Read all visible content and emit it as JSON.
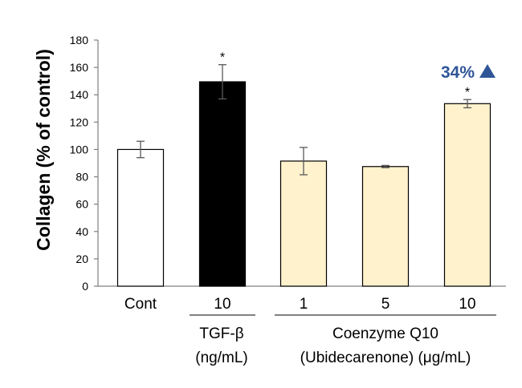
{
  "chart_data": {
    "type": "bar",
    "ylabel": "Collagen (% of control)",
    "ylim": [
      0,
      180
    ],
    "yticks": [
      0,
      20,
      40,
      60,
      80,
      100,
      120,
      140,
      160,
      180
    ],
    "grid": false,
    "legend": "none",
    "categories": [
      "Cont",
      "10",
      "1",
      "5",
      "10"
    ],
    "values": [
      100,
      149.5,
      91.5,
      87.5,
      133.5
    ],
    "errors": [
      6,
      12.5,
      10,
      0.8,
      3
    ],
    "significance": [
      "",
      "*",
      "",
      "",
      "*"
    ],
    "bar_colors": [
      "#ffffff",
      "#000000",
      "#fff2cc",
      "#fff2cc",
      "#fff2cc"
    ],
    "groups": [
      {
        "line1": "TGF-β",
        "line2": "(ng/mL)"
      },
      {
        "line1": "Coenzyme Q10",
        "line2": "(Ubidecarenone) (μg/mL)"
      }
    ],
    "annotation": {
      "text": "34%",
      "color": "#2f5597"
    }
  }
}
